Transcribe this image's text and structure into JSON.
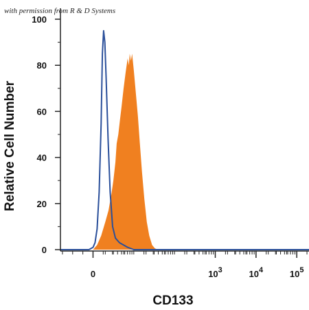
{
  "chart_data": {
    "type": "area",
    "title": "",
    "xlabel": "CD133",
    "ylabel": "Relative Cell Number",
    "xscale": "biexponential",
    "xlim": [
      -0.8,
      5.3
    ],
    "ylim": [
      0,
      100
    ],
    "x_tick_labels": [
      {
        "value": 0,
        "base": "0",
        "exp": ""
      },
      {
        "value": 3,
        "base": "10",
        "exp": "3"
      },
      {
        "value": 4,
        "base": "10",
        "exp": "4"
      },
      {
        "value": 5,
        "base": "10",
        "exp": "5"
      }
    ],
    "y_ticks": [
      0,
      20,
      40,
      60,
      80,
      100
    ],
    "grid": false,
    "legend": "none",
    "annotation": "with permission from R & D Systems",
    "series": [
      {
        "style": "line",
        "color": "#2a4f9a",
        "points": [
          [
            -0.8,
            0
          ],
          [
            -0.1,
            0
          ],
          [
            0.0,
            1
          ],
          [
            0.05,
            3
          ],
          [
            0.1,
            9
          ],
          [
            0.15,
            25
          ],
          [
            0.2,
            55
          ],
          [
            0.23,
            85
          ],
          [
            0.26,
            95
          ],
          [
            0.29,
            90
          ],
          [
            0.32,
            75
          ],
          [
            0.37,
            48
          ],
          [
            0.42,
            25
          ],
          [
            0.48,
            10
          ],
          [
            0.55,
            5
          ],
          [
            0.65,
            3
          ],
          [
            0.75,
            2
          ],
          [
            0.85,
            1
          ],
          [
            1.0,
            0
          ],
          [
            5.3,
            0
          ]
        ]
      },
      {
        "style": "fill",
        "color": "#f08020",
        "points": [
          [
            -0.8,
            0
          ],
          [
            0.0,
            0
          ],
          [
            0.1,
            2
          ],
          [
            0.2,
            6
          ],
          [
            0.3,
            12
          ],
          [
            0.38,
            17
          ],
          [
            0.45,
            24
          ],
          [
            0.5,
            30
          ],
          [
            0.55,
            38
          ],
          [
            0.58,
            46
          ],
          [
            0.62,
            50
          ],
          [
            0.66,
            56
          ],
          [
            0.7,
            62
          ],
          [
            0.75,
            70
          ],
          [
            0.8,
            77
          ],
          [
            0.85,
            83
          ],
          [
            0.88,
            80
          ],
          [
            0.9,
            85
          ],
          [
            0.93,
            82
          ],
          [
            0.96,
            85
          ],
          [
            1.0,
            78
          ],
          [
            1.05,
            68
          ],
          [
            1.1,
            58
          ],
          [
            1.15,
            46
          ],
          [
            1.2,
            34
          ],
          [
            1.26,
            22
          ],
          [
            1.32,
            12
          ],
          [
            1.38,
            6
          ],
          [
            1.45,
            2
          ],
          [
            1.52,
            0.5
          ],
          [
            1.6,
            0
          ],
          [
            5.3,
            0
          ]
        ]
      }
    ]
  }
}
